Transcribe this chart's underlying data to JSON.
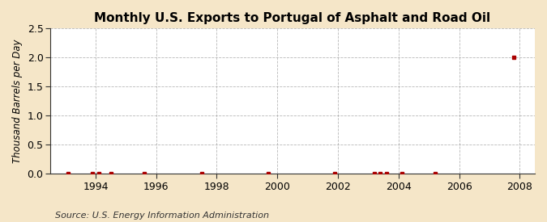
{
  "title": "Monthly U.S. Exports to Portugal of Asphalt and Road Oil",
  "ylabel": "Thousand Barrels per Day",
  "source": "Source: U.S. Energy Information Administration",
  "figure_bg_color": "#f5e6c8",
  "plot_bg_color": "#ffffff",
  "ylim": [
    0.0,
    2.5
  ],
  "yticks": [
    0.0,
    0.5,
    1.0,
    1.5,
    2.0,
    2.5
  ],
  "xlim": [
    1992.5,
    2008.5
  ],
  "xticks": [
    1994,
    1996,
    1998,
    2000,
    2002,
    2004,
    2006,
    2008
  ],
  "data_x": [
    1993.1,
    1993.9,
    1994.1,
    1994.5,
    1995.6,
    1997.5,
    1999.7,
    2001.9,
    2003.2,
    2003.4,
    2003.6,
    2004.1,
    2005.2,
    2007.8
  ],
  "data_y": [
    0.0,
    0.0,
    0.0,
    0.0,
    0.0,
    0.0,
    0.0,
    0.0,
    0.0,
    0.0,
    0.0,
    0.0,
    0.0,
    2.0
  ],
  "marker_color": "#aa0000",
  "marker_size": 3.5,
  "grid_color": "#999999",
  "title_fontsize": 11,
  "label_fontsize": 8.5,
  "tick_fontsize": 9,
  "source_fontsize": 8
}
